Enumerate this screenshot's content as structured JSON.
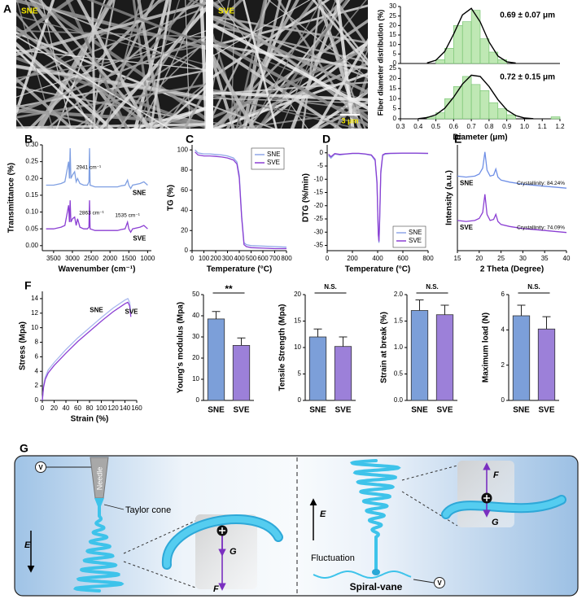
{
  "panels": [
    "A",
    "B",
    "C",
    "D",
    "E",
    "F",
    "G"
  ],
  "sem": [
    {
      "label": "SNE"
    },
    {
      "label": "SVE",
      "scale_bar": "3 μm"
    }
  ],
  "diagram": {
    "left": {
      "needle": "Needle",
      "taylor_cone": "Taylor cone",
      "field": "E",
      "force_g": "G",
      "force_f": "F",
      "voltage": "V"
    },
    "right": {
      "fluctuation": "Fluctuation",
      "spiral_vane": "Spiral-vane",
      "field": "E",
      "force_f": "F",
      "force_g": "G",
      "voltage": "V"
    }
  },
  "chart_data": [
    {
      "type": "histogram",
      "ylabel": "Fiber diameter distribution (%)",
      "annotation": "0.69 ± 0.07 μm",
      "bins": [
        0.5,
        0.55,
        0.6,
        0.65,
        0.7,
        0.75,
        0.8,
        0.85,
        0.9
      ],
      "counts": [
        2,
        8,
        20,
        22,
        28,
        13,
        6,
        2
      ],
      "fit": {
        "x": [
          0.45,
          0.5,
          0.55,
          0.6,
          0.65,
          0.7,
          0.75,
          0.8,
          0.85,
          0.9,
          0.95
        ],
        "values": [
          0.3,
          1.7,
          6.3,
          15.4,
          25.6,
          29,
          21.9,
          11.3,
          3.9,
          0.9,
          0.2
        ]
      },
      "color": "#bfe8b4",
      "xlim": [
        0.3,
        1.2
      ],
      "ylim": [
        0,
        30
      ],
      "yticks": [
        0,
        5,
        10,
        15,
        20,
        25,
        30
      ]
    },
    {
      "type": "histogram",
      "xlabel": "Diameter (μm)",
      "annotation": "0.72 ± 0.15 μm",
      "bins": [
        0.45,
        0.5,
        0.55,
        0.6,
        0.65,
        0.7,
        0.75,
        0.8,
        0.85,
        0.9,
        0.95,
        1.0,
        1.05,
        1.1,
        1.15,
        1.2
      ],
      "counts": [
        1,
        3,
        10,
        16,
        21,
        17,
        14,
        8,
        5,
        2,
        0,
        0,
        0,
        0,
        1
      ],
      "fit": {
        "x": [
          0.4,
          0.45,
          0.5,
          0.55,
          0.6,
          0.65,
          0.7,
          0.75,
          0.8,
          0.85,
          0.9,
          0.95,
          1.0,
          1.05
        ],
        "values": [
          0.1,
          0.6,
          2.0,
          5.2,
          10.7,
          17.2,
          21.6,
          21.0,
          16.0,
          9.5,
          4.4,
          1.6,
          0.4,
          0.1
        ]
      },
      "color": "#bfe8b4",
      "xlim": [
        0.3,
        1.2
      ],
      "ylim": [
        0,
        25
      ],
      "yticks": [
        0,
        5,
        10,
        15,
        20,
        25
      ],
      "xticks": [
        0.3,
        0.4,
        0.5,
        0.6,
        0.7,
        0.8,
        0.9,
        {
          "value": 1,
          "label": "1.0"
        },
        1.1,
        1.2
      ]
    },
    {
      "type": "line",
      "xlabel": "Wavenumber (cm⁻¹)",
      "ylabel": "Transmittance (%)",
      "annotations": [
        "2941 cm⁻¹",
        "2863 cm⁻¹",
        "1535 cm⁻¹"
      ],
      "x": [
        3700,
        3500,
        3300,
        3200,
        3150,
        3100,
        3080,
        3060,
        3040,
        3000,
        2941,
        2900,
        2863,
        2800,
        2700,
        2600,
        2560,
        2545,
        2530,
        2400,
        2200,
        2000,
        1800,
        1700,
        1600,
        1535,
        1500,
        1450,
        1400,
        1200,
        1100,
        1000
      ],
      "series": [
        {
          "name": "SNE",
          "color": "#7f9fe2",
          "values": [
            0.18,
            0.18,
            0.185,
            0.19,
            0.22,
            0.25,
            0.2,
            0.29,
            0.2,
            0.21,
            0.22,
            0.19,
            0.2,
            0.185,
            0.18,
            0.18,
            0.19,
            0.29,
            0.18,
            0.175,
            0.175,
            0.175,
            0.175,
            0.178,
            0.18,
            0.195,
            0.18,
            0.17,
            0.18,
            0.185,
            0.19,
            0.18
          ]
        },
        {
          "name": "SVE",
          "color": "#8b3fd3",
          "values": [
            0.05,
            0.05,
            0.055,
            0.06,
            0.09,
            0.12,
            0.07,
            0.135,
            0.07,
            0.08,
            0.085,
            0.06,
            0.08,
            0.055,
            0.05,
            0.05,
            0.055,
            0.135,
            0.05,
            0.045,
            0.045,
            0.045,
            0.045,
            0.048,
            0.05,
            0.07,
            0.05,
            0.04,
            0.05,
            0.055,
            0.06,
            0.05
          ]
        }
      ],
      "xlim": [
        3800,
        900
      ],
      "xticks": [
        3500,
        3000,
        2500,
        2000,
        1500,
        1000
      ],
      "ylim": [
        -0.015,
        0.3
      ],
      "yticks": [
        {
          "value": 0,
          "label": "0.00"
        },
        0.05,
        {
          "value": 0.1,
          "label": "0.10"
        },
        0.15,
        {
          "value": 0.2,
          "label": "0.20"
        },
        0.25,
        {
          "value": 0.3,
          "label": "0.30"
        }
      ]
    },
    {
      "type": "line",
      "xlabel": "Temperature (°C)",
      "ylabel": "TG (%)",
      "legend": "upper right",
      "x": [
        25,
        50,
        100,
        150,
        200,
        250,
        300,
        350,
        380,
        400,
        420,
        440,
        460,
        500,
        600,
        700,
        800
      ],
      "series": [
        {
          "name": "SNE",
          "color": "#8fa6e8",
          "values": [
            100,
            97,
            96,
            96,
            95.5,
            95,
            94,
            92,
            88,
            75,
            35,
            8,
            6,
            5,
            4.5,
            4,
            3.5
          ]
        },
        {
          "name": "SVE",
          "color": "#8b3fd3",
          "values": [
            98,
            95,
            94,
            94,
            93.5,
            93,
            92,
            90,
            86,
            72,
            33,
            6,
            4,
            3,
            2.5,
            2,
            2
          ]
        }
      ],
      "xlim": [
        0,
        800
      ],
      "xticks": [
        0,
        100,
        200,
        300,
        400,
        500,
        600,
        700,
        800
      ],
      "ylim": [
        0,
        105
      ],
      "yticks": [
        0,
        20,
        40,
        60,
        80,
        100
      ]
    },
    {
      "type": "line",
      "xlabel": "Temperature (°C)",
      "ylabel": "DTG (%/min)",
      "legend": "lower right",
      "x": [
        10,
        30,
        60,
        100,
        150,
        200,
        250,
        300,
        350,
        380,
        395,
        405,
        410,
        415,
        425,
        440,
        460,
        500,
        600,
        700,
        800
      ],
      "series": [
        {
          "name": "SNE",
          "color": "#8fa6e8",
          "values": [
            -1,
            -2,
            -0.5,
            -0.8,
            -0.5,
            -0.3,
            -0.3,
            -0.5,
            -1,
            -3,
            -12,
            -30,
            -34,
            -28,
            -8,
            -1,
            -0.5,
            -0.3,
            -0.2,
            -0.2,
            -0.3
          ]
        },
        {
          "name": "SVE",
          "color": "#8b3fd3",
          "values": [
            -0.5,
            -1.5,
            -0.3,
            -0.6,
            -0.4,
            -0.2,
            -0.2,
            -0.4,
            -0.8,
            -2.5,
            -11,
            -31,
            -33.5,
            -27,
            -7,
            -0.8,
            -0.3,
            -0.2,
            -0.1,
            -0.1,
            -0.2
          ]
        }
      ],
      "xlim": [
        0,
        800
      ],
      "xticks": [
        0,
        200,
        400,
        600,
        800
      ],
      "ylim": [
        -37,
        3
      ],
      "yticks": [
        0,
        -5,
        -10,
        -15,
        -20,
        -25,
        -30,
        -35
      ]
    },
    {
      "type": "line",
      "xlabel": "2 Theta (Degree)",
      "ylabel": "Intensity (a.u.)",
      "annotations": [
        "Crystallinity: 84.24%",
        "Crystallinity: 74.09%"
      ],
      "x": [
        15,
        17,
        19,
        20,
        20.8,
        21.3,
        21.8,
        22.5,
        23.3,
        23.8,
        24.3,
        25,
        27,
        30,
        35,
        40
      ],
      "series": [
        {
          "name": "SNE",
          "color": "#6f8fe6",
          "values": [
            7.4,
            7.3,
            7.4,
            7.6,
            8.2,
            9.8,
            8.0,
            7.4,
            7.5,
            8.1,
            7.3,
            7.0,
            6.8,
            6.6,
            6.4,
            6.2
          ]
        },
        {
          "name": "SVE",
          "color": "#8b3fd3",
          "values": [
            3.0,
            2.9,
            3.0,
            3.2,
            3.8,
            5.6,
            3.6,
            3.0,
            3.1,
            3.6,
            2.9,
            2.6,
            2.4,
            2.2,
            2.0,
            1.8
          ]
        }
      ],
      "xlim": [
        15,
        40
      ],
      "xticks": [
        15,
        20,
        25,
        30,
        35,
        40
      ],
      "ylim": [
        0,
        10.5
      ]
    },
    {
      "type": "line",
      "xlabel": "Strain (%)",
      "ylabel": "Stress (Mpa)",
      "x": [
        0,
        2,
        5,
        10,
        20,
        40,
        60,
        80,
        100,
        120,
        140,
        145,
        148,
        150
      ],
      "series": [
        {
          "name": "SNE",
          "color": "#a9b8ee",
          "values": [
            0,
            2,
            3.2,
            4.2,
            5.2,
            7,
            8.6,
            10,
            11.4,
            12.7,
            13.8,
            14,
            13.5,
            12
          ]
        },
        {
          "name": "SVE",
          "color": "#8b3fd3",
          "values": [
            0,
            1.8,
            2.9,
            3.8,
            4.8,
            6.5,
            8.1,
            9.5,
            10.9,
            12.2,
            13.3,
            13.5,
            13,
            11.5
          ]
        }
      ],
      "xlim": [
        0,
        160
      ],
      "xticks": [
        0,
        20,
        40,
        60,
        80,
        100,
        120,
        140,
        160
      ],
      "ylim": [
        0,
        15
      ],
      "yticks": [
        0,
        2,
        4,
        6,
        8,
        10,
        12,
        14
      ]
    },
    {
      "type": "bar",
      "ylabel": "Young's modulus (Mpa)",
      "annotation": "**",
      "categories": [
        "SNE",
        "SVE"
      ],
      "values": [
        38.5,
        26
      ],
      "errors": [
        3.5,
        3.5
      ],
      "colors": [
        "#7c9fd9",
        "#9c80d9"
      ],
      "ylim": [
        0,
        50
      ],
      "yticks": [
        0,
        10,
        20,
        30,
        40,
        50
      ]
    },
    {
      "type": "bar",
      "ylabel": "Tensile Strength (Mpa)",
      "annotation": "N.S.",
      "categories": [
        "SNE",
        "SVE"
      ],
      "values": [
        12,
        10.2
      ],
      "errors": [
        1.5,
        1.8
      ],
      "colors": [
        "#7c9fd9",
        "#9c80d9"
      ],
      "ylim": [
        0,
        20
      ],
      "yticks": [
        0,
        5,
        10,
        15,
        20
      ]
    },
    {
      "type": "bar",
      "ylabel": "Strain at break (%)",
      "annotation": "N.S.",
      "categories": [
        "SNE",
        "SVE"
      ],
      "values": [
        1.7,
        1.62
      ],
      "errors": [
        0.2,
        0.18
      ],
      "colors": [
        "#7c9fd9",
        "#9c80d9"
      ],
      "ylim": [
        0,
        2
      ],
      "yticks": [
        {
          "value": 0,
          "label": "0.0"
        },
        0.5,
        {
          "value": 1,
          "label": "1.0"
        },
        1.5,
        {
          "value": 2,
          "label": "2.0"
        }
      ]
    },
    {
      "type": "bar",
      "ylabel": "Maximum load (N)",
      "annotation": "N.S.",
      "categories": [
        "SNE",
        "SVE"
      ],
      "values": [
        4.8,
        4.05
      ],
      "errors": [
        0.6,
        0.7
      ],
      "colors": [
        "#7c9fd9",
        "#9c80d9"
      ],
      "ylim": [
        0,
        6
      ],
      "yticks": [
        0,
        2,
        4,
        6
      ]
    }
  ]
}
